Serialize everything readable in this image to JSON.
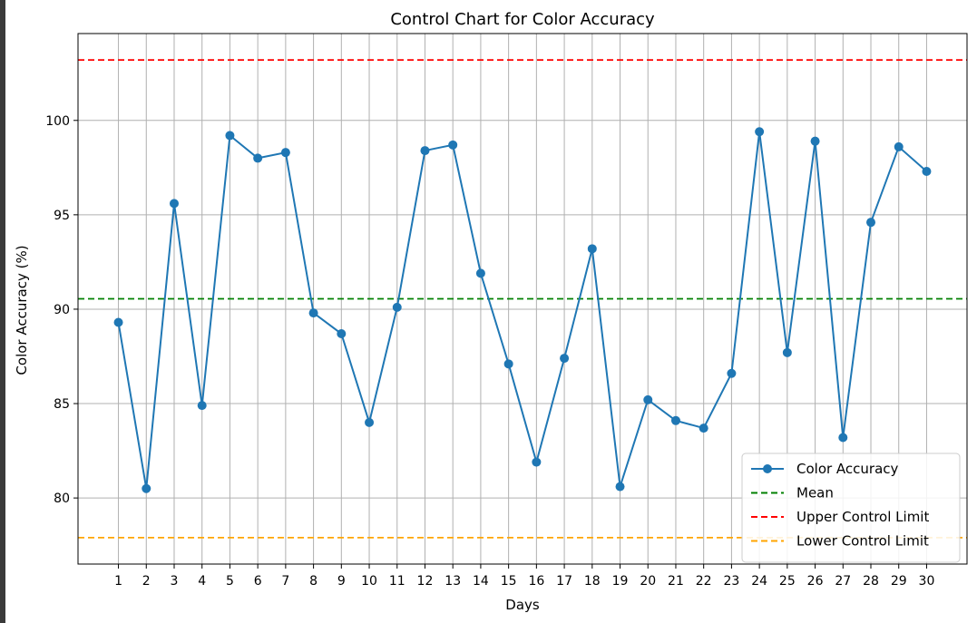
{
  "chart_data": {
    "type": "line",
    "title": "Control Chart for Color Accuracy",
    "xlabel": "Days",
    "ylabel": "Color Accuracy (%)",
    "x": [
      1,
      2,
      3,
      4,
      5,
      6,
      7,
      8,
      9,
      10,
      11,
      12,
      13,
      14,
      15,
      16,
      17,
      18,
      19,
      20,
      21,
      22,
      23,
      24,
      25,
      26,
      27,
      28,
      29,
      30
    ],
    "xlim": [
      -0.45,
      31.45
    ],
    "ylim": [
      76.5,
      104.6
    ],
    "yticks": [
      80,
      85,
      90,
      95,
      100
    ],
    "grid": true,
    "legend_position": "lower-right",
    "series": [
      {
        "name": "Color Accuracy",
        "color": "#1f77b4",
        "values": [
          89.3,
          80.5,
          95.6,
          84.9,
          99.2,
          98.0,
          98.3,
          89.8,
          88.7,
          84.0,
          90.1,
          98.4,
          98.7,
          91.9,
          87.1,
          81.9,
          87.4,
          93.2,
          80.6,
          85.2,
          84.1,
          83.7,
          86.6,
          99.4,
          87.7,
          98.9,
          83.2,
          94.6,
          98.6,
          97.3
        ]
      }
    ],
    "reference_lines": [
      {
        "name": "Mean",
        "value": 90.55,
        "color": "#008000"
      },
      {
        "name": "Upper Control Limit",
        "value": 103.2,
        "color": "#ff0000"
      },
      {
        "name": "Lower Control Limit",
        "value": 77.9,
        "color": "#ffa500"
      }
    ]
  }
}
